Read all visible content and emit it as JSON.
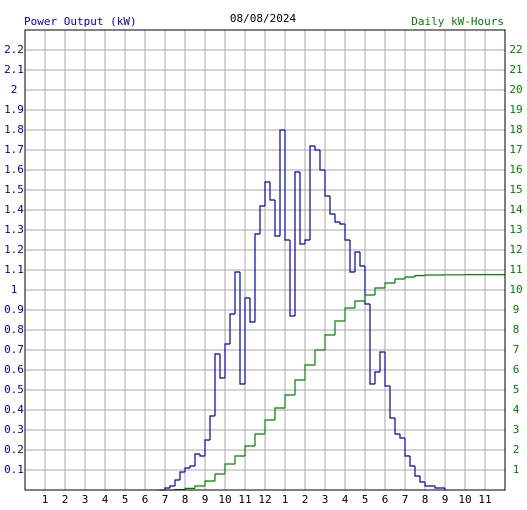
{
  "chart_data": {
    "type": "line",
    "title": "08/08/2024",
    "y_label": "Power Output (kW)",
    "y2_label": "Daily kW-Hours",
    "xlim": [
      0,
      24
    ],
    "xticks": [
      1,
      2,
      3,
      4,
      5,
      6,
      7,
      8,
      9,
      10,
      11,
      12,
      {
        "value": 13,
        "label": "1"
      },
      {
        "value": 14,
        "label": "2"
      },
      {
        "value": 15,
        "label": "3"
      },
      {
        "value": 16,
        "label": "4"
      },
      {
        "value": 17,
        "label": "5"
      },
      {
        "value": 18,
        "label": "6"
      },
      {
        "value": 19,
        "label": "7"
      },
      {
        "value": 20,
        "label": "8"
      },
      {
        "value": 21,
        "label": "9"
      },
      {
        "value": 22,
        "label": "10"
      },
      {
        "value": 23,
        "label": "11"
      }
    ],
    "ylim": [
      0,
      2.3
    ],
    "yticks": [
      0.1,
      0.2,
      0.3,
      0.4,
      0.5,
      0.6,
      0.7,
      0.8,
      0.9,
      1.0,
      1.1,
      1.2,
      1.3,
      1.4,
      1.5,
      1.6,
      1.7,
      1.8,
      1.9,
      2.0,
      2.1,
      2.2
    ],
    "y2lim": [
      0,
      23
    ],
    "y2ticks": [
      1,
      2,
      3,
      4,
      5,
      6,
      7,
      8,
      9,
      10,
      11,
      12,
      13,
      14,
      15,
      16,
      17,
      18,
      19,
      20,
      21,
      22
    ],
    "grid": true,
    "series": [
      {
        "name": "Power Output (kW)",
        "color": "#0000c0",
        "x": [
          6.75,
          7,
          7.25,
          7.5,
          7.75,
          8,
          8.25,
          8.5,
          8.75,
          9,
          9.25,
          9.5,
          9.75,
          10,
          10.25,
          10.5,
          10.75,
          11,
          11.25,
          11.5,
          11.75,
          12,
          12.25,
          12.5,
          12.75,
          13,
          13.25,
          13.5,
          13.75,
          14,
          14.25,
          14.5,
          14.75,
          15,
          15.25,
          15.5,
          15.75,
          16,
          16.25,
          16.5,
          16.75,
          17,
          17.25,
          17.5,
          17.75,
          18,
          18.25,
          18.5,
          18.75,
          19,
          19.25,
          19.5,
          19.75,
          20,
          20.5,
          21
        ],
        "values": [
          0,
          0.01,
          0.02,
          0.05,
          0.09,
          0.11,
          0.12,
          0.18,
          0.17,
          0.25,
          0.37,
          0.68,
          0.56,
          0.73,
          0.88,
          1.09,
          0.53,
          0.96,
          0.84,
          1.28,
          1.42,
          1.54,
          1.45,
          1.27,
          1.8,
          1.25,
          0.87,
          1.59,
          1.23,
          1.25,
          1.72,
          1.7,
          1.6,
          1.47,
          1.38,
          1.34,
          1.33,
          1.25,
          1.09,
          1.19,
          1.12,
          0.93,
          0.53,
          0.59,
          0.69,
          0.52,
          0.36,
          0.28,
          0.26,
          0.17,
          0.12,
          0.07,
          0.04,
          0.02,
          0.01,
          0
        ]
      },
      {
        "name": "Daily kW-Hours",
        "color": "#008000",
        "axis": "y2",
        "x": [
          6.5,
          7,
          7.5,
          8,
          8.5,
          9,
          9.5,
          10,
          10.5,
          11,
          11.5,
          12,
          12.5,
          13,
          13.5,
          14,
          14.5,
          15,
          15.5,
          16,
          16.5,
          17,
          17.5,
          18,
          18.5,
          19,
          19.5,
          20,
          21,
          22,
          24
        ],
        "values": [
          0,
          0,
          0.02,
          0.08,
          0.2,
          0.45,
          0.8,
          1.3,
          1.7,
          2.2,
          2.8,
          3.5,
          4.1,
          4.75,
          5.5,
          6.25,
          7.0,
          7.75,
          8.45,
          9.1,
          9.45,
          9.75,
          10.1,
          10.35,
          10.55,
          10.65,
          10.72,
          10.75,
          10.76,
          10.77,
          10.77
        ]
      }
    ]
  }
}
